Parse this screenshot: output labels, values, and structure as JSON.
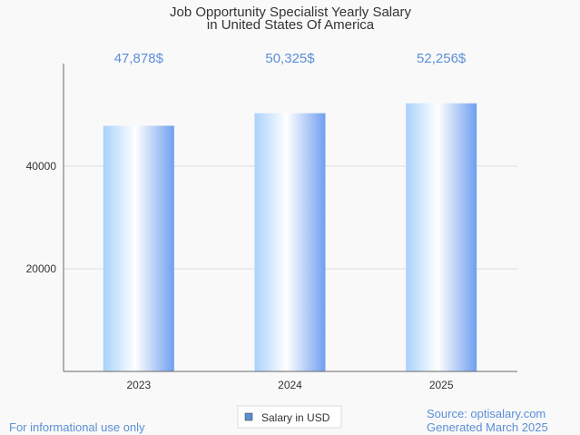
{
  "chart_data": {
    "type": "bar",
    "title_lines": [
      "Job Opportunity Specialist Yearly Salary",
      "in United States Of America"
    ],
    "categories": [
      "2023",
      "2024",
      "2025"
    ],
    "series": [
      {
        "name": "Salary in USD",
        "values": [
          47878,
          50325,
          52256
        ]
      }
    ],
    "data_labels": [
      "47,878$",
      "50,325$",
      "52,256$"
    ],
    "y_ticks": [
      20000,
      40000
    ],
    "ylim": [
      0,
      60000
    ],
    "grid": true,
    "legend_position": "bottom-center",
    "colors": {
      "bar_light": "#ffffff",
      "bar_mid": "#b9dcfb",
      "bar_dark": "#6f9ff0",
      "accent": "#5b8fd6",
      "legend_swatch": "#5a8fd0"
    }
  },
  "footer": {
    "disclaimer": "For informational use only",
    "source": "Source: optisalary.com",
    "generated": "Generated March 2025"
  }
}
